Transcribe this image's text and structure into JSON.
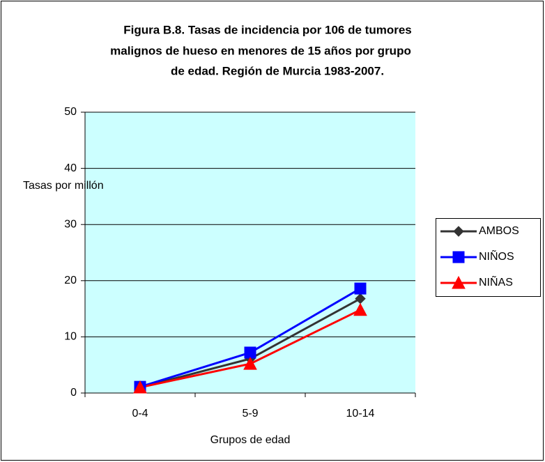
{
  "chart_data": {
    "type": "line",
    "title": [
      "Figura B.8. Tasas de incidencia por 106 de tumores",
      "malignos de hueso en menores de 15 años por grupo",
      "de edad. Región de Murcia 1983-2007."
    ],
    "y_label": "Tasas por millón",
    "x_label": "Grupos de edad",
    "categories": [
      "0-4",
      "5-9",
      "10-14"
    ],
    "series": [
      {
        "name": "AMBOS",
        "color": "#333333",
        "marker": "diamond",
        "values": [
          1.0,
          6.1,
          16.8
        ]
      },
      {
        "name": "NIÑOS",
        "color": "#0000ff",
        "marker": "square",
        "values": [
          1.1,
          7.2,
          18.6
        ]
      },
      {
        "name": "NIÑAS",
        "color": "#ff0000",
        "marker": "triangle",
        "values": [
          1.0,
          5.2,
          14.8
        ]
      }
    ],
    "ylim": [
      0,
      50
    ],
    "yticks": [
      0,
      10,
      20,
      30,
      40,
      50
    ],
    "grid": true,
    "legend": "right"
  }
}
